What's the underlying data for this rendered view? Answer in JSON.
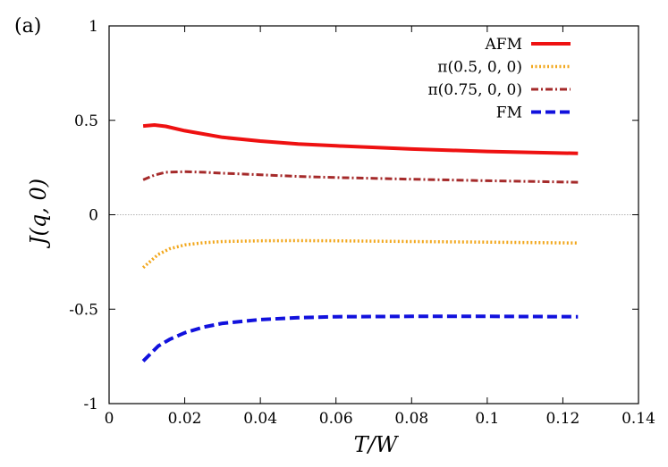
{
  "panel_label": "(a)",
  "chart_data": {
    "type": "line",
    "xlabel": "T/W",
    "ylabel": "J(q, 0)",
    "xlim": [
      0,
      0.14
    ],
    "ylim": [
      -1,
      1
    ],
    "xticks": [
      0,
      0.02,
      0.04,
      0.06,
      0.08,
      0.1,
      0.12,
      0.14
    ],
    "xtick_labels": [
      "0",
      "0.02",
      "0.04",
      "0.06",
      "0.08",
      "0.1",
      "0.12",
      "0.14"
    ],
    "yticks": [
      -1,
      -0.5,
      0,
      0.5,
      1
    ],
    "ytick_labels": [
      "-1",
      "-0.5",
      "0",
      "0.5",
      "1"
    ],
    "zero_line": true,
    "grid": false,
    "legend_position": "top-right",
    "series": [
      {
        "name": "AFM",
        "color": "#ee1111",
        "dash": "solid",
        "x": [
          0.009,
          0.012,
          0.015,
          0.02,
          0.03,
          0.04,
          0.05,
          0.06,
          0.08,
          0.1,
          0.124
        ],
        "y": [
          0.47,
          0.475,
          0.468,
          0.445,
          0.41,
          0.39,
          0.375,
          0.365,
          0.348,
          0.335,
          0.325
        ]
      },
      {
        "name": "π(0.5, 0, 0)",
        "color": "#f2a71c",
        "dash": "dotted",
        "x": [
          0.009,
          0.011,
          0.013,
          0.016,
          0.02,
          0.025,
          0.03,
          0.04,
          0.05,
          0.06,
          0.08,
          0.1,
          0.124
        ],
        "y": [
          -0.28,
          -0.245,
          -0.21,
          -0.18,
          -0.16,
          -0.148,
          -0.142,
          -0.138,
          -0.137,
          -0.138,
          -0.142,
          -0.145,
          -0.15
        ]
      },
      {
        "name": "π(0.75, 0, 0)",
        "color": "#a52a2a",
        "dash": "dashdot",
        "x": [
          0.009,
          0.012,
          0.015,
          0.02,
          0.025,
          0.03,
          0.04,
          0.05,
          0.06,
          0.08,
          0.1,
          0.124
        ],
        "y": [
          0.185,
          0.21,
          0.225,
          0.228,
          0.225,
          0.22,
          0.212,
          0.203,
          0.197,
          0.188,
          0.18,
          0.172
        ]
      },
      {
        "name": "FM",
        "color": "#1111dd",
        "dash": "dashed",
        "x": [
          0.009,
          0.011,
          0.013,
          0.016,
          0.02,
          0.025,
          0.03,
          0.04,
          0.05,
          0.06,
          0.08,
          0.1,
          0.124
        ],
        "y": [
          -0.775,
          -0.735,
          -0.695,
          -0.66,
          -0.625,
          -0.595,
          -0.575,
          -0.555,
          -0.545,
          -0.54,
          -0.538,
          -0.538,
          -0.54
        ]
      }
    ]
  }
}
